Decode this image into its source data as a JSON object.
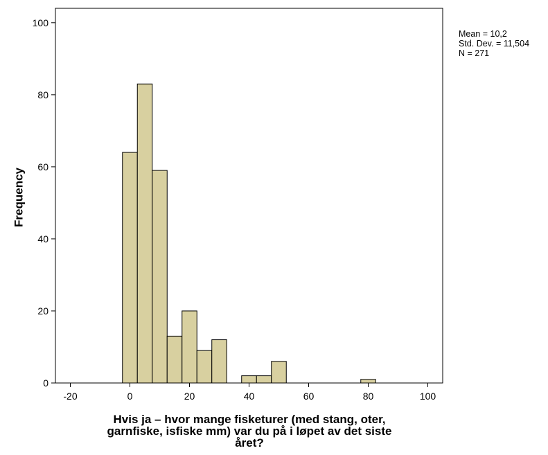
{
  "chart_data": {
    "type": "bar",
    "subtype": "histogram",
    "bin_width": 5,
    "bins": [
      {
        "start": -2.5,
        "end": 2.5,
        "value": 64
      },
      {
        "start": 2.5,
        "end": 7.5,
        "value": 83
      },
      {
        "start": 7.5,
        "end": 12.5,
        "value": 59
      },
      {
        "start": 12.5,
        "end": 17.5,
        "value": 13
      },
      {
        "start": 17.5,
        "end": 22.5,
        "value": 20
      },
      {
        "start": 22.5,
        "end": 27.5,
        "value": 9
      },
      {
        "start": 27.5,
        "end": 32.5,
        "value": 12
      },
      {
        "start": 37.5,
        "end": 42.5,
        "value": 2
      },
      {
        "start": 42.5,
        "end": 47.5,
        "value": 2
      },
      {
        "start": 47.5,
        "end": 52.5,
        "value": 6
      },
      {
        "start": 77.5,
        "end": 82.5,
        "value": 1
      }
    ],
    "bar_color": "#d8d0a0",
    "bar_edge_color": "#000000",
    "xlabel_lines": [
      "Hvis ja – hvor mange fisketurer (med stang, oter,",
      "garnfiske, isfiske mm) var du på i løpet av det siste",
      "året?"
    ],
    "ylabel": "Frequency",
    "x_ticks": [
      "-20",
      "0",
      "20",
      "40",
      "60",
      "80",
      "100"
    ],
    "y_ticks": [
      "0",
      "20",
      "40",
      "60",
      "80",
      "100"
    ],
    "xlim": [
      -25,
      105
    ],
    "ylim": [
      0,
      104
    ],
    "grid": false,
    "stats": {
      "mean": "Mean = 10,2",
      "std": "Std. Dev. = 11,504",
      "n": "N = 271"
    },
    "stats_placement": "top-right"
  }
}
